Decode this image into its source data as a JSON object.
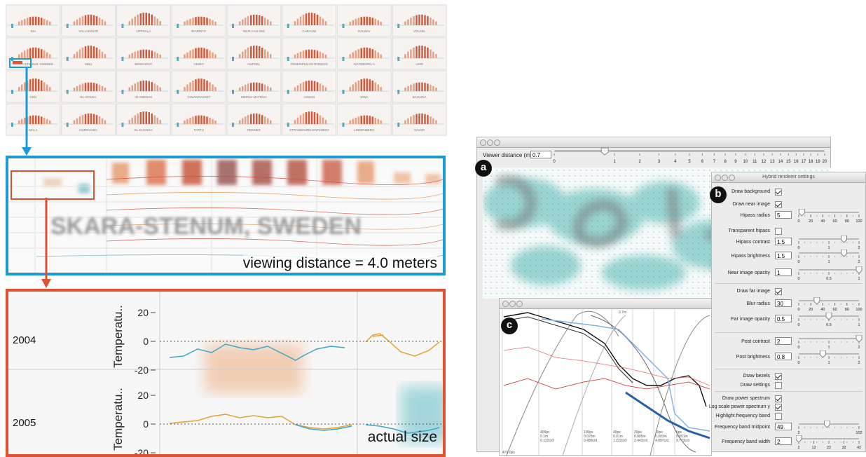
{
  "overview": {
    "cities": [
      [
        "RIA",
        "VALLADOLID",
        "UPPSALA",
        "BIARRITZ",
        "WIJK AAN ZEE",
        "CABAUW",
        "GALWAY",
        "VOLKEL"
      ],
      [
        "SKARA-STENUM, SWEDEN",
        "SIBU",
        "BERKHOUT",
        "HEINO",
        "HUPSEL",
        "TENERIFE/LOS RODEOS",
        "GOTEBORG-A",
        "LIND"
      ],
      [
        "CEN",
        "EL-GOLEA",
        "IN-AMENAS",
        "TAMANRASSET",
        "MERSA-MATRUH",
        "ASWAN",
        "SIWA",
        "BAHARIA"
      ],
      [
        "MALA",
        "HURGUADA",
        "EL-KHANGA",
        "TARTU",
        "RENNES",
        "STRASBOURG-ENTZHEIM",
        "LINDENBERG",
        "GAVAR"
      ]
    ],
    "blurred_title": "SKARA-STENUM, SWEDEN",
    "distance_caption": "viewing distance = 4.0 meters"
  },
  "zoom": {
    "axis_label": "Temperatu..",
    "rows": [
      {
        "year": "2004",
        "ticks": [
          20,
          0,
          -20
        ]
      },
      {
        "year": "2005",
        "ticks": [
          20,
          0,
          -20
        ]
      }
    ],
    "caption": "actual size"
  },
  "viewer": {
    "markers": [
      "a",
      "b",
      "c"
    ],
    "distance_label": "Viewer distance (m)",
    "distance_value": "0.7",
    "distance_ticks": [
      0,
      1,
      2,
      3,
      4,
      5,
      6,
      7,
      8,
      9,
      10,
      11,
      12,
      13,
      14,
      15,
      16,
      17,
      18,
      19,
      20
    ]
  },
  "settings": {
    "title": "Hybrid renderer settings",
    "rows": [
      {
        "label": "Draw background",
        "checked": true
      },
      {
        "label": "Draw near image",
        "checked": true
      },
      {
        "label": "Hipass radius",
        "value": 5,
        "ticks": [
          0,
          20,
          40,
          60,
          80,
          100
        ]
      },
      {
        "label": "Transparent hipass",
        "checked": false
      },
      {
        "label": "Hipass contrast",
        "value": 1.5,
        "ticks": [
          0,
          1,
          2
        ]
      },
      {
        "label": "Hipass brightness",
        "value": 1.5,
        "ticks": [
          0,
          1,
          2
        ]
      },
      {
        "label": "Near image opacity",
        "value": 1,
        "ticks": [
          0,
          0.5,
          1
        ]
      },
      {
        "label": "Draw far image",
        "checked": true
      },
      {
        "label": "Blur radius",
        "value": 30,
        "ticks": [
          0,
          20,
          40,
          60,
          80,
          100
        ]
      },
      {
        "label": "Far image opacity",
        "value": 0.5,
        "ticks": [
          0,
          0.5,
          1
        ]
      },
      {
        "label": "Post contrast",
        "value": 2,
        "ticks": [
          0,
          1,
          2
        ]
      },
      {
        "label": "Post brightness",
        "value": 0.8,
        "ticks": [
          0,
          1,
          2
        ]
      },
      {
        "label": "Draw bezels",
        "checked": true
      },
      {
        "label": "Draw settings",
        "checked": false
      },
      {
        "label": "Draw power spectrum",
        "checked": true
      },
      {
        "label": "Log scale power spectrum y",
        "checked": true
      },
      {
        "label": "Highlight frequency band",
        "checked": false
      },
      {
        "label": "Frequency band midpoint",
        "value": 49,
        "ticks": [
          2,
          102
        ]
      },
      {
        "label": "Frequency band width",
        "value": 2,
        "ticks": [
          2,
          12,
          22,
          32,
          42
        ]
      }
    ]
  },
  "spectrum": {
    "top_label": "0.7m",
    "corner_label": "479.0px",
    "columns": [
      [
        "400px",
        "0.1m",
        "0.122c/d"
      ],
      [
        "100px",
        "0.025m",
        "0.489c/d"
      ],
      [
        "40px",
        "0.01m",
        "1.222c/d"
      ],
      [
        "20px",
        "0.005m",
        "2.443c/d"
      ],
      [
        "10px",
        "0.003m",
        "4.887c/d"
      ],
      [
        "5px",
        "0.001m",
        "9.773c/d"
      ]
    ]
  }
}
